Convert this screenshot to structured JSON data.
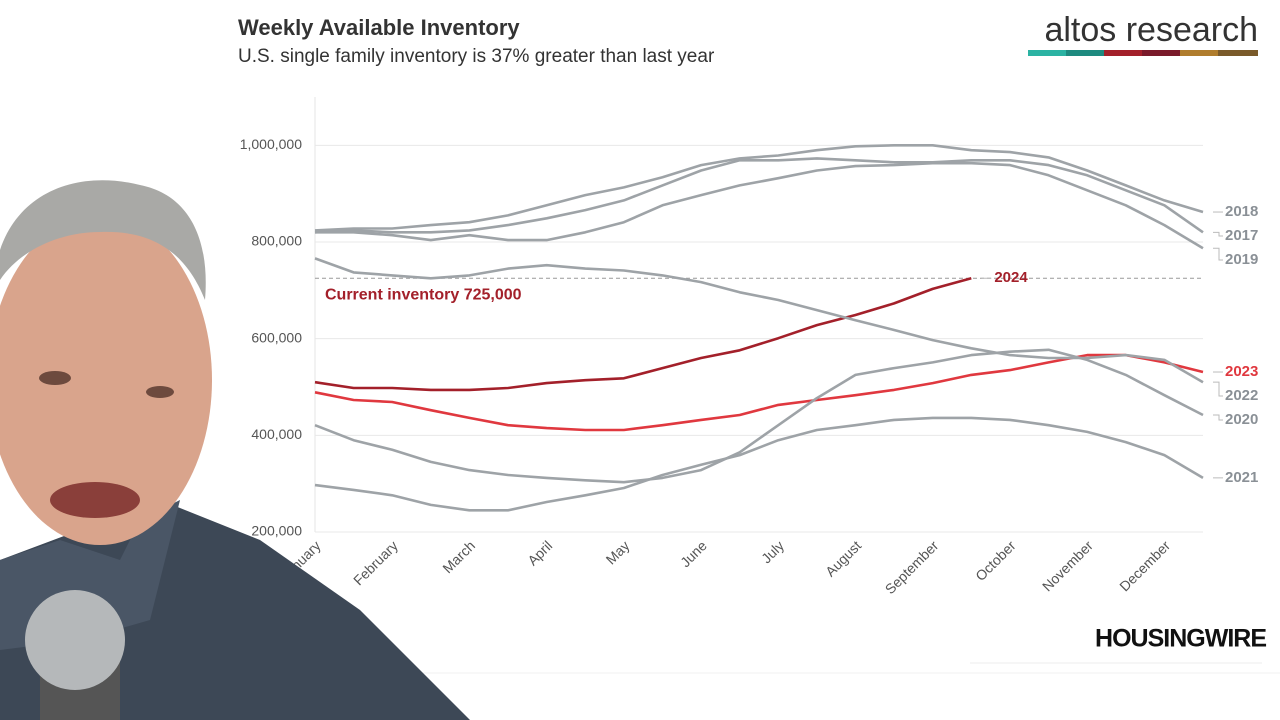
{
  "chart_data": {
    "type": "line",
    "title": "Weekly Available Inventory",
    "subtitle": "U.S. single family inventory is 37% greater than last year",
    "brand": "altos research",
    "publisher": "HOUSINGWIRE",
    "categories": [
      "January",
      null,
      "February",
      null,
      "March",
      null,
      "April",
      null,
      "May",
      null,
      "June",
      null,
      "July",
      null,
      "August",
      null,
      "September",
      null,
      "October",
      null,
      "November",
      null,
      "December",
      null
    ],
    "ylim": [
      200000,
      1100000
    ],
    "yticks": [
      {
        "value": 200000,
        "label": "200,000"
      },
      {
        "value": 400000,
        "label": "400,000"
      },
      {
        "value": 600000,
        "label": "600,000"
      },
      {
        "value": 800000,
        "label": "800,000"
      },
      {
        "value": 1000000,
        "label": "1,000,000"
      }
    ],
    "grid": true,
    "reference_line": {
      "value": 725000,
      "label": "Current inventory 725,000",
      "color": "#a3202a"
    },
    "series": [
      {
        "name": "2018",
        "color": "#9ea3a7",
        "values": [
          824000,
          828000,
          828000,
          835000,
          841000,
          855000,
          876000,
          897000,
          913000,
          934000,
          959000,
          973000,
          979000,
          990000,
          998000,
          1000000,
          1000000,
          990000,
          986000,
          975000,
          948000,
          917000,
          886000,
          862000
        ]
      },
      {
        "name": "2017",
        "color": "#9ea3a7",
        "values": [
          820000,
          824000,
          820000,
          820000,
          824000,
          835000,
          849000,
          866000,
          886000,
          917000,
          948000,
          969000,
          969000,
          973000,
          969000,
          965000,
          965000,
          969000,
          969000,
          959000,
          938000,
          907000,
          876000,
          820000
        ]
      },
      {
        "name": "2019",
        "color": "#9ea3a7",
        "values": [
          820000,
          820000,
          814000,
          804000,
          814000,
          804000,
          804000,
          820000,
          841000,
          876000,
          897000,
          917000,
          932000,
          948000,
          957000,
          959000,
          963000,
          963000,
          959000,
          938000,
          907000,
          876000,
          835000,
          787000
        ]
      },
      {
        "name": "2024",
        "color": "#a3202a",
        "values": [
          510000,
          498000,
          498000,
          494000,
          494000,
          498000,
          508000,
          514000,
          518000,
          539000,
          560000,
          576000,
          601000,
          628000,
          649000,
          673000,
          703000,
          725000,
          null,
          null,
          null,
          null,
          null,
          null
        ]
      },
      {
        "name": "2023",
        "color": "#e0383f",
        "values": [
          489000,
          473000,
          469000,
          452000,
          436000,
          421000,
          415000,
          411000,
          411000,
          421000,
          432000,
          442000,
          463000,
          473000,
          483000,
          494000,
          508000,
          525000,
          535000,
          551000,
          566000,
          566000,
          551000,
          531000
        ]
      },
      {
        "name": "2022",
        "color": "#9ea3a7",
        "values": [
          766000,
          737000,
          731000,
          725000,
          731000,
          745000,
          752000,
          745000,
          741000,
          731000,
          717000,
          696000,
          680000,
          659000,
          638000,
          618000,
          597000,
          580000,
          566000,
          560000,
          560000,
          566000,
          556000,
          510000
        ]
      },
      {
        "name": "2020",
        "color": "#9ea3a7",
        "values": [
          421000,
          390000,
          370000,
          345000,
          328000,
          318000,
          312000,
          307000,
          303000,
          312000,
          328000,
          365000,
          421000,
          477000,
          525000,
          539000,
          551000,
          566000,
          573000,
          577000,
          556000,
          525000,
          483000,
          442000
        ]
      },
      {
        "name": "2021",
        "color": "#9ea3a7",
        "values": [
          297000,
          287000,
          276000,
          256000,
          245000,
          245000,
          262000,
          276000,
          291000,
          318000,
          339000,
          359000,
          390000,
          411000,
          421000,
          432000,
          436000,
          436000,
          432000,
          421000,
          407000,
          386000,
          359000,
          312000
        ]
      }
    ]
  }
}
